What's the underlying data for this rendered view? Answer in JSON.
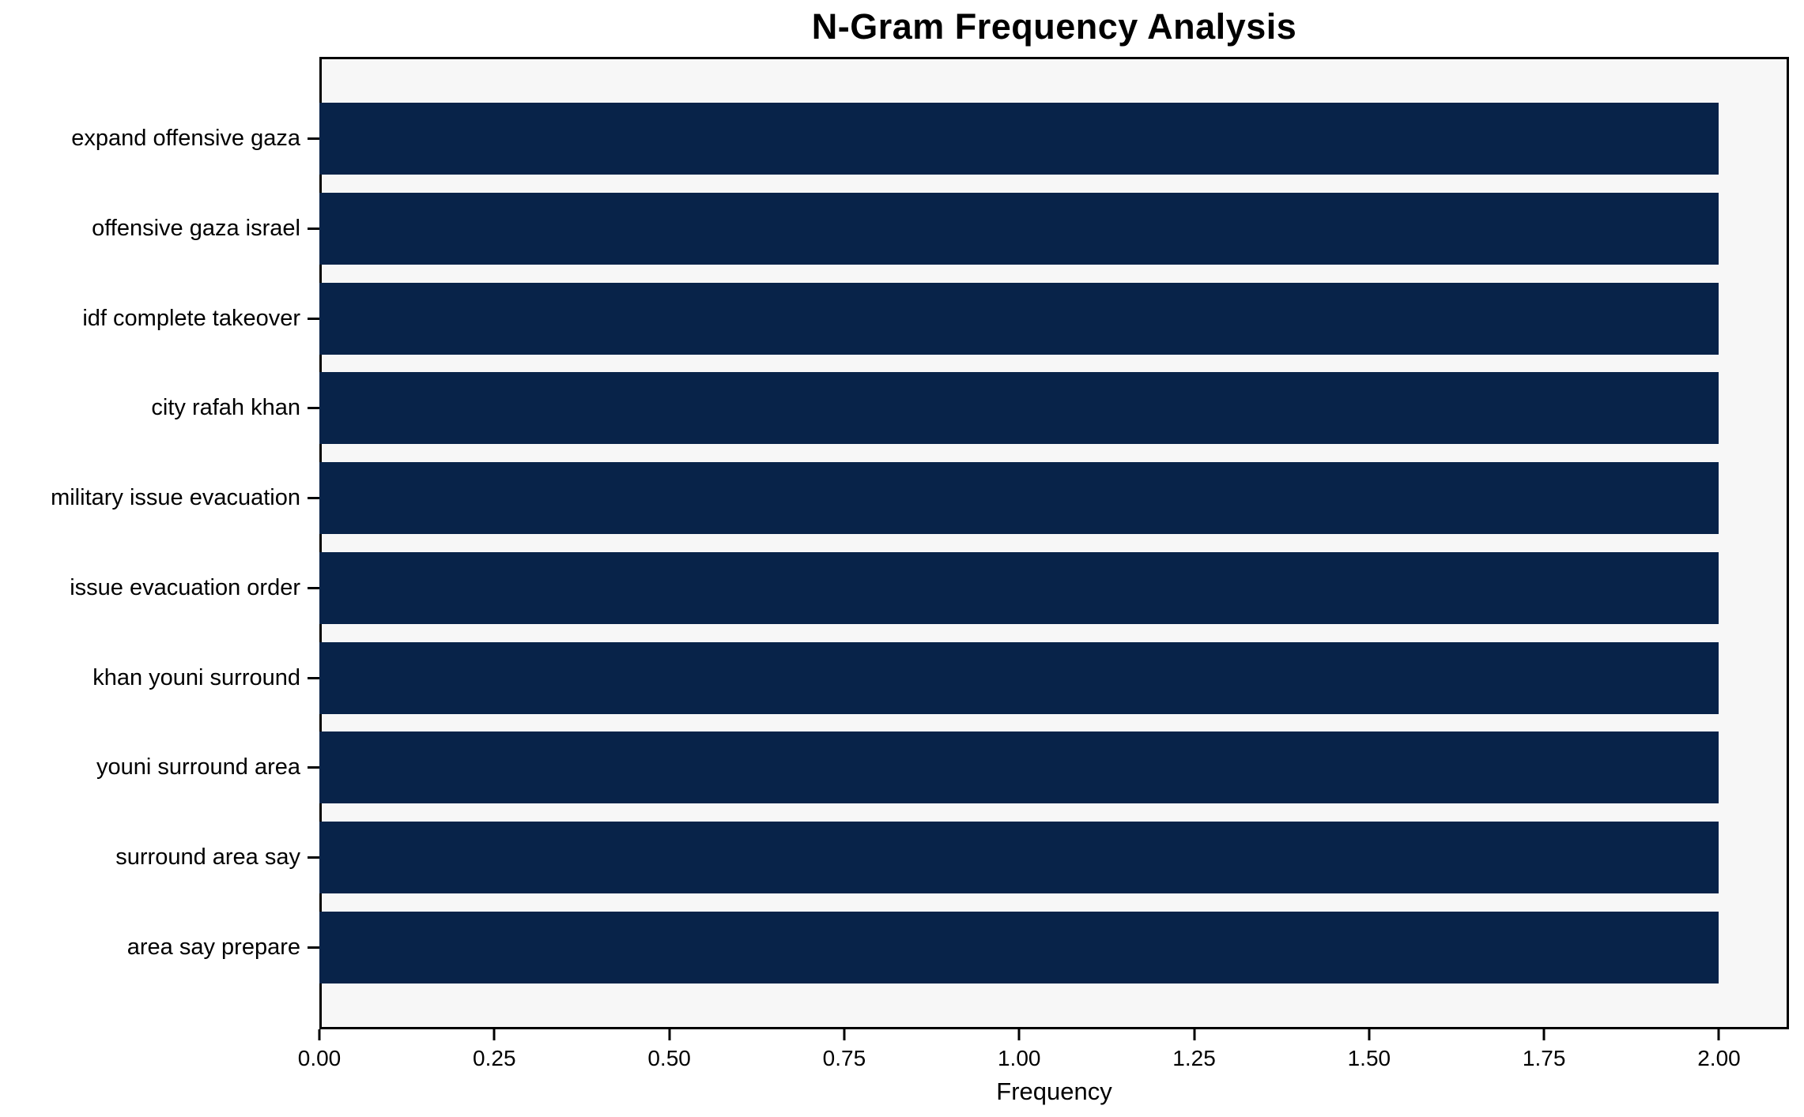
{
  "chart_data": {
    "type": "bar",
    "orientation": "horizontal",
    "title": "N-Gram Frequency Analysis",
    "categories": [
      "expand offensive gaza",
      "offensive gaza israel",
      "idf complete takeover",
      "city rafah khan",
      "military issue evacuation",
      "issue evacuation order",
      "khan youni surround",
      "youni surround area",
      "surround area say",
      "area say prepare"
    ],
    "values": [
      2,
      2,
      2,
      2,
      2,
      2,
      2,
      2,
      2,
      2
    ],
    "xlabel": "Frequency",
    "ylabel": "",
    "xlim": [
      0,
      2.1
    ],
    "x_tick_values": [
      0,
      0.25,
      0.5,
      0.75,
      1.0,
      1.25,
      1.5,
      1.75,
      2.0
    ],
    "x_tick_labels": [
      "0.00",
      "0.25",
      "0.50",
      "0.75",
      "1.00",
      "1.25",
      "1.50",
      "1.75",
      "2.00"
    ],
    "bar_height_fraction": 0.8,
    "grid": false,
    "legend": "none",
    "colors": {
      "bar": "#082349",
      "plot_background": "#f7f7f7",
      "figure_background": "#ffffff",
      "axis": "#000000",
      "text": "#000000"
    }
  }
}
